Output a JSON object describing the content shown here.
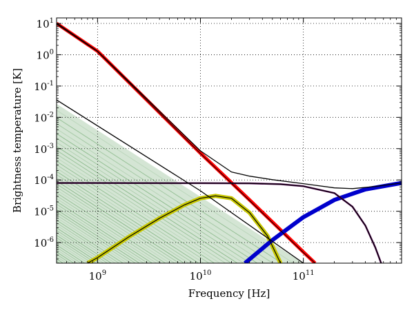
{
  "chart_data": {
    "type": "line",
    "title": "",
    "xlabel": "Frequency [Hz]",
    "ylabel": "Brightness temperature [K]",
    "xscale": "log",
    "yscale": "log",
    "xlim": [
      400000000.0,
      900000000000.0
    ],
    "ylim": [
      2.2e-07,
      15
    ],
    "grid": "dotted",
    "legend": "none",
    "x_ticks": [
      {
        "value": 1000000000.0,
        "base": "10",
        "exp": "9"
      },
      {
        "value": 10000000000.0,
        "base": "10",
        "exp": "10"
      },
      {
        "value": 100000000000.0,
        "base": "10",
        "exp": "11"
      }
    ],
    "y_ticks": [
      {
        "value": 10,
        "base": "10",
        "exp": "1"
      },
      {
        "value": 1,
        "base": "10",
        "exp": "0"
      },
      {
        "value": 0.1,
        "base": "10",
        "exp": "-1"
      },
      {
        "value": 0.01,
        "base": "10",
        "exp": "-2"
      },
      {
        "value": 0.001,
        "base": "10",
        "exp": "-3"
      },
      {
        "value": 0.0001,
        "base": "10",
        "exp": "-4"
      },
      {
        "value": 1e-05,
        "base": "10",
        "exp": "-5"
      },
      {
        "value": 1e-06,
        "base": "10",
        "exp": "-6"
      }
    ],
    "series_colors": {
      "synchrotron": "#ff0000",
      "free_free": "#3c8a3c",
      "ame": "#c8c800",
      "dust": "#0000cc",
      "cmb": "#5a0a5a",
      "total": "#000000"
    },
    "series": [
      {
        "key": "synchrotron",
        "color": "#ff0000",
        "width": 5,
        "points": [
          [
            400000000.0,
            10
          ],
          [
            1000000000.0,
            1.3
          ],
          [
            10000000000.0,
            0.00072
          ],
          [
            30000000000.0,
            2.3e-05
          ],
          [
            100000000000.0,
            5e-07
          ],
          [
            130000000000.0,
            2.2e-07
          ]
        ]
      },
      {
        "key": "ame",
        "color": "#c8c800",
        "width": 6,
        "points": [
          [
            800000000.0,
            2.2e-07
          ],
          [
            1000000000.0,
            3.3e-07
          ],
          [
            2000000000.0,
            1.5e-06
          ],
          [
            4000000000.0,
            6e-06
          ],
          [
            7000000000.0,
            1.6e-05
          ],
          [
            10000000000.0,
            2.6e-05
          ],
          [
            14000000000.0,
            3.1e-05
          ],
          [
            20000000000.0,
            2.6e-05
          ],
          [
            30000000000.0,
            9e-06
          ],
          [
            45000000000.0,
            1.6e-06
          ],
          [
            55000000000.0,
            4e-07
          ],
          [
            60000000000.0,
            2.2e-07
          ]
        ]
      },
      {
        "key": "dust",
        "color": "#0000cc",
        "width": 6,
        "points": [
          [
            27000000000.0,
            2.2e-07
          ],
          [
            50000000000.0,
            1.2e-06
          ],
          [
            100000000000.0,
            6.5e-06
          ],
          [
            200000000000.0,
            2.3e-05
          ],
          [
            400000000000.0,
            5e-05
          ],
          [
            900000000000.0,
            8e-05
          ]
        ]
      },
      {
        "key": "cmb",
        "color": "#5a0a5a",
        "width": 2.5,
        "points": [
          [
            400000000.0,
            8e-05
          ],
          [
            10000000000.0,
            7.9e-05
          ],
          [
            30000000000.0,
            7.8e-05
          ],
          [
            60000000000.0,
            7.3e-05
          ],
          [
            100000000000.0,
            6.3e-05
          ],
          [
            200000000000.0,
            3.8e-05
          ],
          [
            300000000000.0,
            1.4e-05
          ],
          [
            400000000000.0,
            3.5e-06
          ],
          [
            500000000000.0,
            7e-07
          ],
          [
            570000000000.0,
            2.2e-07
          ]
        ]
      },
      {
        "key": "total",
        "color": "#000000",
        "width": 1.3,
        "points": [
          [
            400000000.0,
            10.3
          ],
          [
            1000000000.0,
            1.3
          ],
          [
            10000000000.0,
            0.00085
          ],
          [
            20000000000.0,
            0.00018
          ],
          [
            30000000000.0,
            0.000132
          ],
          [
            50000000000.0,
            0.000102
          ],
          [
            100000000000.0,
            7.6e-05
          ],
          [
            200000000000.0,
            5.6e-05
          ],
          [
            300000000000.0,
            5.3e-05
          ],
          [
            500000000000.0,
            6.2e-05
          ],
          [
            900000000000.0,
            8e-05
          ]
        ]
      },
      {
        "key": "total",
        "color": "#000000",
        "width": 1.3,
        "points": [
          [
            400000000.0,
            0.036
          ],
          [
            10000000000.0,
            4.5e-05
          ],
          [
            100000000000.0,
            2.2e-07
          ]
        ]
      },
      {
        "key": "total",
        "color": "#000000",
        "width": 1.2,
        "points": [
          [
            400000000.0,
            8e-05
          ],
          [
            10000000000.0,
            7.9e-05
          ],
          [
            30000000000.0,
            7.8e-05
          ],
          [
            60000000000.0,
            7.3e-05
          ],
          [
            100000000000.0,
            6.3e-05
          ],
          [
            200000000000.0,
            3.8e-05
          ],
          [
            300000000000.0,
            1.4e-05
          ],
          [
            400000000000.0,
            3.5e-06
          ],
          [
            500000000000.0,
            7e-07
          ],
          [
            570000000000.0,
            2.2e-07
          ]
        ]
      },
      {
        "key": "total",
        "color": "#000000",
        "width": 1.2,
        "points": [
          [
            800000000.0,
            2.2e-07
          ],
          [
            1000000000.0,
            3.3e-07
          ],
          [
            2000000000.0,
            1.5e-06
          ],
          [
            4000000000.0,
            6e-06
          ],
          [
            7000000000.0,
            1.6e-05
          ],
          [
            10000000000.0,
            2.6e-05
          ],
          [
            14000000000.0,
            3.1e-05
          ],
          [
            20000000000.0,
            2.6e-05
          ],
          [
            30000000000.0,
            9e-06
          ],
          [
            45000000000.0,
            1.6e-06
          ],
          [
            55000000000.0,
            4e-07
          ],
          [
            60000000000.0,
            2.2e-07
          ]
        ]
      },
      {
        "key": "total",
        "color": "#000000",
        "width": 1.0,
        "points": [
          [
            400000000.0,
            9.5
          ],
          [
            1000000000.0,
            1.25
          ],
          [
            10000000000.0,
            0.0007
          ],
          [
            30000000000.0,
            2.2e-05
          ],
          [
            100000000000.0,
            4.8e-07
          ],
          [
            130000000000.0,
            2.2e-07
          ]
        ]
      }
    ],
    "free_free_band": {
      "color": "#3c8a3c",
      "upper": [
        [
          400000000.0,
          0.027
        ],
        [
          100000000000.0,
          2.2e-07
        ]
      ],
      "lower": [
        [
          400000000.0,
          2.2e-07
        ]
      ],
      "n_lines": 70
    }
  }
}
